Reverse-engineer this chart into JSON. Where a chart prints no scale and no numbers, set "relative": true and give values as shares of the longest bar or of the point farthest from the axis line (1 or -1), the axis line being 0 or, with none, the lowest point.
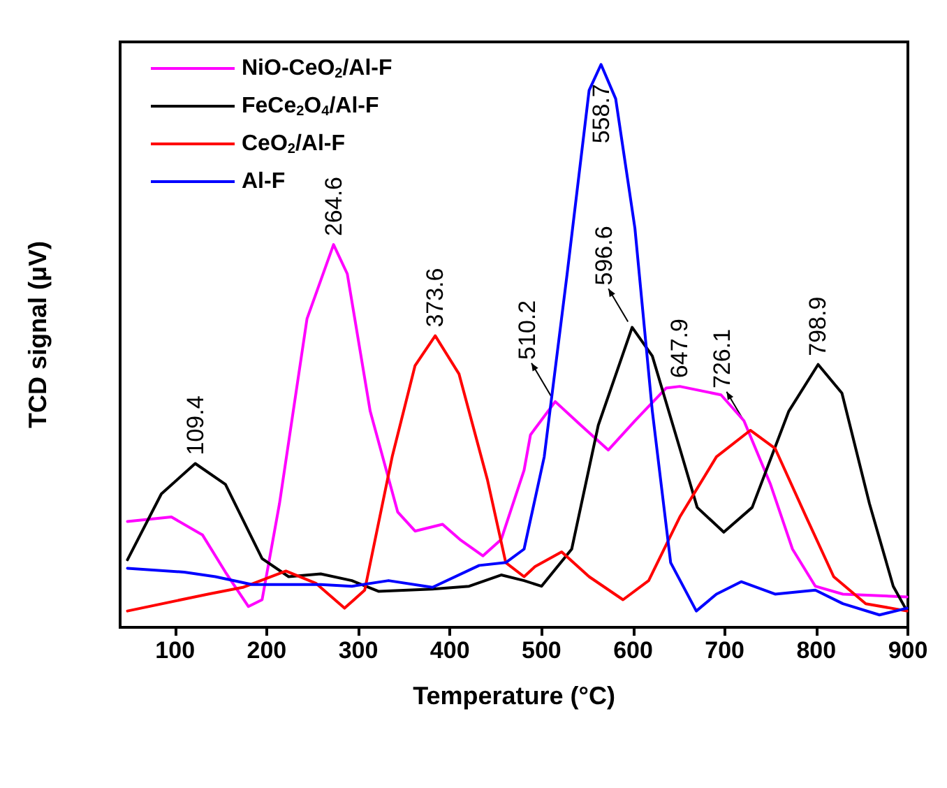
{
  "chart_data": {
    "type": "line",
    "relative": true,
    "xlabel": "Temperature (°C)",
    "ylabel": "TCD signal (μV)",
    "xlim": [
      40,
      900
    ],
    "xticks": [
      100,
      200,
      300,
      400,
      500,
      600,
      700,
      800,
      900
    ],
    "grid": false,
    "legend": "top left",
    "marker": "none",
    "line_style": "solid",
    "series": [
      {
        "name": "NiO-CeO$_{2}$/Al-F",
        "color": "#ff00ff",
        "x": [
          48,
          96,
          130,
          155,
          180,
          195,
          214,
          244,
          273,
          288,
          313,
          343,
          362,
          392,
          411,
          436,
          456,
          481,
          488,
          515,
          543,
          573,
          602,
          636,
          651,
          696,
          721,
          750,
          774,
          799,
          829,
          899
        ],
        "values": [
          0.188,
          0.196,
          0.164,
          0.098,
          0.037,
          0.049,
          0.22,
          0.548,
          0.68,
          0.628,
          0.384,
          0.205,
          0.171,
          0.183,
          0.156,
          0.127,
          0.156,
          0.279,
          0.342,
          0.401,
          0.359,
          0.315,
          0.367,
          0.425,
          0.428,
          0.413,
          0.367,
          0.254,
          0.139,
          0.073,
          0.059,
          0.054
        ]
      },
      {
        "name": "FeCe$_{2}$O$_{4}$/Al-F",
        "color": "#000000",
        "x": [
          48,
          85,
          122,
          155,
          195,
          224,
          259,
          293,
          322,
          381,
          421,
          456,
          481,
          500,
          533,
          562,
          599,
          621,
          651,
          670,
          699,
          730,
          770,
          802,
          828,
          858,
          884,
          899
        ],
        "values": [
          0.12,
          0.237,
          0.291,
          0.254,
          0.122,
          0.09,
          0.095,
          0.083,
          0.064,
          0.068,
          0.073,
          0.093,
          0.083,
          0.073,
          0.139,
          0.359,
          0.533,
          0.482,
          0.318,
          0.213,
          0.169,
          0.213,
          0.384,
          0.467,
          0.416,
          0.22,
          0.073,
          0.029
        ]
      },
      {
        "name": "CeO$_{2}$/Al-F",
        "color": "#ff0000",
        "x": [
          48,
          136,
          174,
          221,
          254,
          285,
          307,
          337,
          362,
          384,
          410,
          441,
          461,
          481,
          493,
          522,
          552,
          589,
          617,
          651,
          691,
          728,
          755,
          789,
          819,
          854,
          899
        ],
        "values": [
          0.029,
          0.059,
          0.071,
          0.1,
          0.078,
          0.034,
          0.066,
          0.303,
          0.465,
          0.518,
          0.45,
          0.262,
          0.115,
          0.09,
          0.108,
          0.134,
          0.09,
          0.049,
          0.083,
          0.196,
          0.303,
          0.35,
          0.318,
          0.196,
          0.09,
          0.042,
          0.029
        ]
      },
      {
        "name": "Al-F",
        "color": "#0000ff",
        "x": [
          48,
          110,
          144,
          184,
          259,
          293,
          333,
          381,
          432,
          461,
          481,
          503,
          528,
          552,
          565,
          581,
          602,
          621,
          641,
          669,
          691,
          718,
          755,
          799,
          829,
          869,
          899
        ],
        "values": [
          0.105,
          0.098,
          0.09,
          0.076,
          0.076,
          0.073,
          0.083,
          0.071,
          0.11,
          0.115,
          0.139,
          0.303,
          0.628,
          0.954,
          1.0,
          0.939,
          0.709,
          0.384,
          0.115,
          0.029,
          0.059,
          0.081,
          0.059,
          0.066,
          0.042,
          0.022,
          0.034
        ]
      }
    ],
    "annotations": [
      {
        "text": "109.4",
        "x": 122,
        "y": 0.291
      },
      {
        "text": "264.6",
        "x": 273,
        "y": 0.68
      },
      {
        "text": "373.6",
        "x": 384,
        "y": 0.518
      },
      {
        "text": "510.2",
        "x": 515,
        "y": 0.401
      },
      {
        "text": "558.7",
        "x": 565,
        "y": 1.0
      },
      {
        "text": "596.6",
        "x": 599,
        "y": 0.533
      },
      {
        "text": "647.9",
        "x": 651,
        "y": 0.428
      },
      {
        "text": "726.1",
        "x": 728,
        "y": 0.35
      },
      {
        "text": "798.9",
        "x": 802,
        "y": 0.467
      }
    ]
  }
}
